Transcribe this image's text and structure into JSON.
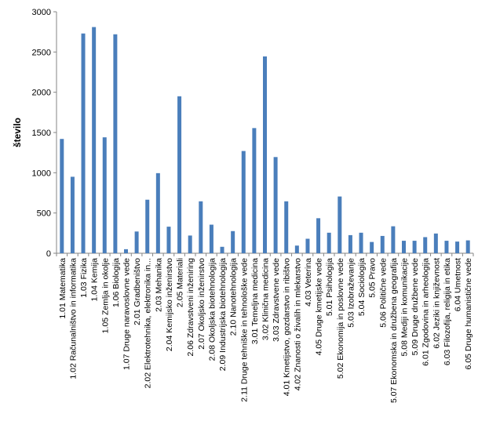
{
  "chart_data": {
    "type": "bar",
    "title": "",
    "xlabel": "",
    "ylabel": "število",
    "ylim": [
      0,
      3000
    ],
    "yticks": [
      "0",
      "500",
      "1000",
      "1500",
      "2000",
      "2500",
      "3000"
    ],
    "grid": false,
    "legend": "none",
    "bar_color": "#4a7ebb",
    "categories": [
      "1.01 Matematika",
      "1.02 Računalništvo in informatika",
      "1.03 Fizika",
      "1.04 Kemija",
      "1.05 Zemlja in okolje",
      "1.06 Biologija",
      "1.07 Druge naravoslovne vede",
      "2.01 Gradbeništvo",
      "2.02 Elektrotehnika, elektronika in...",
      "2.03 Mehanika",
      "2.04 Kemijsko inženirstvo",
      "2.05 Materiali",
      "2.06 Zdravstveni inženiring",
      "2.07 Okoljsko inženirstvo",
      "2.08 Okoljska biotehnologija",
      "2.09 Industrijska biotehnologija",
      "2.10 Nanotehnologija",
      "2.11 Druge tehniške in tehnološke vede",
      "3.01 Temeljna medicina",
      "3.02 Klinična medicina",
      "3.03 Zdravstvene vede",
      "4.01 Kmetijstvo, gozdarstvo in ribištvo",
      "4.02 Znanosti o živalih in mlekarstvo",
      "4.03 Veterina",
      "4.05 Druge kmetijske vede",
      "5.01 Psihologija",
      "5.02 Ekonomija in poslovne vede",
      "5.03 Izobraževanje",
      "5.04 Sociologija",
      "5.05 Pravo",
      "5.06 Politične vede",
      "5.07 Ekonomska in družbena geografija",
      "5.08 Mediji in komunikacije",
      "5.09 Druge družbene vede",
      "6.01 Zgodovina in arheologija",
      "6.02 Jeziki in književnost",
      "6.03 Filozofija, religija in etika",
      "6.04 Umetnost",
      "6.05 Druge humanistične vede"
    ],
    "values": [
      1420,
      950,
      2730,
      2810,
      1440,
      2720,
      50,
      270,
      665,
      995,
      330,
      1950,
      220,
      645,
      355,
      80,
      275,
      1270,
      1555,
      2445,
      1195,
      645,
      95,
      180,
      435,
      255,
      705,
      225,
      255,
      140,
      215,
      335,
      155,
      155,
      200,
      245,
      155,
      145,
      160
    ]
  }
}
